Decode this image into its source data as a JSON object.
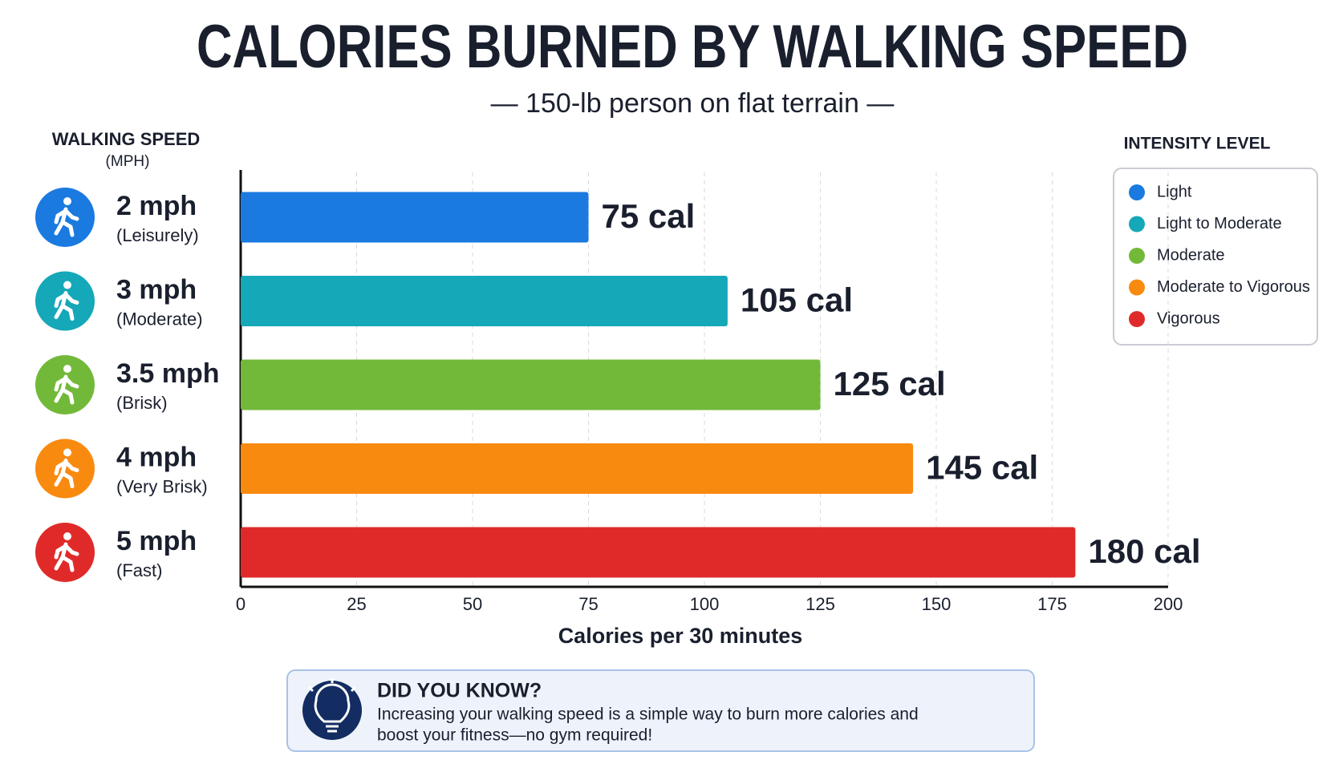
{
  "chart_data": {
    "type": "bar",
    "orientation": "horizontal",
    "title": "CALORIES BURNED BY WALKING SPEED",
    "subtitle": "— 150-lb person on flat terrain —",
    "y_axis_title": "WALKING SPEED",
    "y_axis_unit": "(MPH)",
    "x_axis_title": "Calories per 30 minutes",
    "categories": [
      "2 mph",
      "3 mph",
      "3.5 mph",
      "4 mph",
      "5 mph"
    ],
    "category_notes": [
      "(Leisurely)",
      "(Moderate)",
      "(Brisk)",
      "(Very Brisk)",
      "(Fast)"
    ],
    "values": [
      75,
      105,
      125,
      145,
      180
    ],
    "value_labels": [
      "75 cal",
      "105 cal",
      "125 cal",
      "145 cal",
      "180 cal"
    ],
    "colors": [
      "#1a7ae0",
      "#14a8b8",
      "#72b93a",
      "#f98a10",
      "#e02a2a"
    ],
    "xlim": [
      0,
      200
    ],
    "xticks": [
      0,
      25,
      50,
      75,
      100,
      125,
      150,
      175,
      200
    ],
    "grid": true,
    "legend": {
      "title": "INTENSITY LEVEL",
      "position": "upper right",
      "items": [
        {
          "name": "Light",
          "color": "#1a7ae0"
        },
        {
          "name": "Light to Moderate",
          "color": "#14a8b8"
        },
        {
          "name": "Moderate",
          "color": "#72b93a"
        },
        {
          "name": "Moderate to Vigorous",
          "color": "#f98a10"
        },
        {
          "name": "Vigorous",
          "color": "#e02a2a"
        }
      ]
    }
  },
  "callout": {
    "title": "DID YOU KNOW?",
    "text_lines": [
      "Increasing your walking speed is a simple way to burn more calories and",
      "boost your fitness—no gym required!"
    ]
  }
}
